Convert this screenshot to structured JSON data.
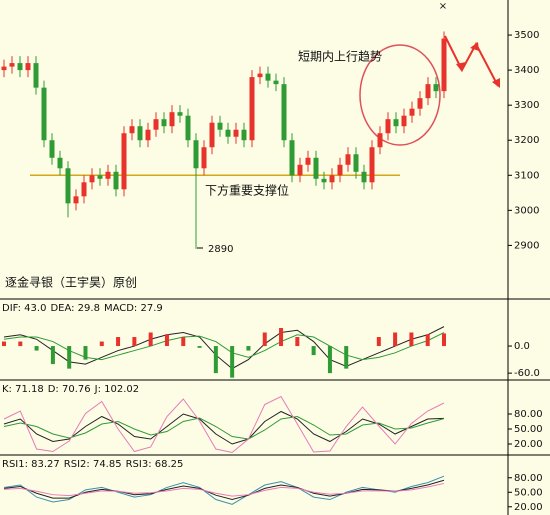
{
  "chart_data": [
    {
      "type": "candlestick",
      "open": [
        3400,
        3410,
        3420,
        3400,
        3420,
        3350,
        3200,
        3150,
        3120,
        3020,
        3040,
        3080,
        3100,
        3090,
        3110,
        3060,
        3220,
        3240,
        3200,
        3230,
        3260,
        3240,
        3280,
        3270,
        3200,
        3120,
        3180,
        3250,
        3230,
        3210,
        3230,
        3200,
        3380,
        3390,
        3370,
        3360,
        3200,
        3100,
        3130,
        3150,
        3090,
        3080,
        3100,
        3130,
        3160,
        3110,
        3080,
        3180,
        3220,
        3260,
        3240,
        3270,
        3290,
        3320,
        3360,
        3340
      ],
      "high": [
        3430,
        3440,
        3440,
        3440,
        3440,
        3370,
        3220,
        3170,
        3140,
        3060,
        3100,
        3120,
        3120,
        3130,
        3130,
        3240,
        3260,
        3260,
        3250,
        3280,
        3280,
        3300,
        3300,
        3290,
        3220,
        3200,
        3270,
        3270,
        3250,
        3250,
        3250,
        3400,
        3410,
        3410,
        3390,
        3380,
        3220,
        3150,
        3170,
        3170,
        3110,
        3120,
        3150,
        3180,
        3180,
        3130,
        3200,
        3240,
        3280,
        3280,
        3290,
        3310,
        3340,
        3380,
        3380,
        3510
      ],
      "low": [
        3380,
        3390,
        3380,
        3380,
        3330,
        3180,
        3130,
        3100,
        2980,
        3000,
        3020,
        3060,
        3070,
        3070,
        3040,
        3040,
        3200,
        3180,
        3180,
        3210,
        3220,
        3220,
        3250,
        3180,
        2890,
        3100,
        3160,
        3210,
        3190,
        3190,
        3180,
        3180,
        3360,
        3350,
        3340,
        3180,
        3080,
        3080,
        3110,
        3070,
        3060,
        3060,
        3080,
        3110,
        3090,
        3060,
        3060,
        3160,
        3200,
        3220,
        3220,
        3250,
        3270,
        3300,
        3320,
        3320
      ],
      "close": [
        3410,
        3420,
        3400,
        3420,
        3350,
        3200,
        3150,
        3120,
        3020,
        3040,
        3080,
        3100,
        3090,
        3110,
        3060,
        3220,
        3240,
        3200,
        3230,
        3260,
        3240,
        3280,
        3270,
        3200,
        3120,
        3180,
        3250,
        3230,
        3210,
        3230,
        3200,
        3380,
        3390,
        3370,
        3360,
        3200,
        3100,
        3130,
        3150,
        3090,
        3080,
        3100,
        3130,
        3160,
        3110,
        3080,
        3180,
        3220,
        3260,
        3240,
        3270,
        3290,
        3320,
        3360,
        3340,
        3490
      ],
      "up_color": "#e8322c",
      "down_color": "#2e9b35",
      "ylim": [
        2750,
        3600
      ],
      "yticks": [
        2900,
        3000,
        3100,
        3200,
        3300,
        3400,
        3500
      ],
      "support_level": 3100,
      "support_color": "#d4a61a",
      "annotations": [
        "短期内上行趋势",
        "下方重要支撑位",
        "2890",
        "逐金寻银（王宇昊）原创"
      ]
    },
    {
      "type": "macd",
      "series": [
        {
          "name": "DIF: 43.0",
          "color": "#222222",
          "values": [
            20,
            25,
            15,
            -10,
            -35,
            -40,
            -25,
            -10,
            0,
            15,
            25,
            30,
            20,
            -20,
            -50,
            -30,
            5,
            30,
            35,
            10,
            -30,
            -45,
            -30,
            -15,
            0,
            15,
            25,
            43
          ]
        },
        {
          "name": "DEA: 29.8",
          "color": "#2e9b35",
          "values": [
            15,
            20,
            20,
            10,
            -10,
            -25,
            -30,
            -20,
            -10,
            0,
            12,
            20,
            22,
            10,
            -15,
            -25,
            -10,
            10,
            25,
            20,
            0,
            -20,
            -30,
            -25,
            -15,
            0,
            12,
            29.8
          ]
        },
        {
          "name": "MACD: 27.9",
          "type": "bar",
          "color": "#e8322c",
          "down_color": "#2e9b35",
          "values": [
            10,
            10,
            -10,
            -40,
            -50,
            -30,
            10,
            20,
            20,
            30,
            26,
            20,
            -4,
            -60,
            -70,
            -10,
            30,
            40,
            20,
            -20,
            -60,
            -50,
            0,
            20,
            30,
            30,
            26,
            27.9
          ]
        }
      ],
      "ylim": [
        -73,
        102
      ],
      "yticks": [
        {
          "value": 0,
          "label": "0.0"
        },
        {
          "value": -60,
          "label": "-60.0"
        }
      ]
    },
    {
      "type": "line",
      "series": [
        {
          "name": "K: 71.18",
          "color": "#222222",
          "values": [
            60,
            70,
            40,
            25,
            30,
            55,
            75,
            60,
            35,
            30,
            55,
            80,
            70,
            40,
            20,
            30,
            65,
            85,
            70,
            40,
            25,
            45,
            70,
            60,
            40,
            55,
            70,
            71.18
          ]
        },
        {
          "name": "D: 70.76",
          "color": "#2e9b35",
          "values": [
            55,
            62,
            55,
            40,
            32,
            42,
            60,
            65,
            50,
            38,
            45,
            65,
            72,
            55,
            35,
            30,
            48,
            70,
            75,
            58,
            38,
            40,
            58,
            62,
            50,
            52,
            62,
            70.76
          ]
        },
        {
          "name": "J: 102.02",
          "color": "#e87ab8",
          "values": [
            70,
            86,
            10,
            5,
            26,
            81,
            105,
            50,
            5,
            14,
            75,
            110,
            66,
            10,
            3,
            30,
            99,
            115,
            60,
            4,
            6,
            55,
            94,
            56,
            20,
            61,
            86,
            102.02
          ]
        }
      ],
      "ylim": [
        0,
        146
      ],
      "yticks": [
        {
          "value": 80,
          "label": "80.00"
        },
        {
          "value": 50,
          "label": "50.00"
        },
        {
          "value": 20,
          "label": "20.00"
        }
      ]
    },
    {
      "type": "line",
      "series": [
        {
          "name": "RSI1: 83.27",
          "color": "#3a8fb0",
          "values": [
            60,
            65,
            40,
            30,
            35,
            55,
            60,
            50,
            40,
            45,
            60,
            70,
            60,
            35,
            25,
            45,
            65,
            72,
            60,
            40,
            35,
            50,
            60,
            55,
            50,
            62,
            70,
            83.27
          ]
        },
        {
          "name": "RSI2: 74.85",
          "color": "#222222",
          "values": [
            58,
            62,
            48,
            38,
            38,
            50,
            56,
            52,
            45,
            47,
            56,
            63,
            58,
            44,
            35,
            44,
            58,
            65,
            60,
            48,
            42,
            48,
            56,
            55,
            52,
            58,
            65,
            74.85
          ]
        },
        {
          "name": "RSI3: 68.25",
          "color": "#e87ab8",
          "values": [
            56,
            58,
            52,
            45,
            43,
            48,
            53,
            52,
            48,
            49,
            53,
            58,
            56,
            48,
            42,
            45,
            54,
            60,
            58,
            50,
            46,
            48,
            53,
            53,
            52,
            55,
            61,
            68.25
          ]
        }
      ],
      "ylim": [
        3,
        125
      ],
      "yticks": [
        {
          "value": 80,
          "label": "80.00"
        },
        {
          "value": 50,
          "label": "50.00"
        },
        {
          "value": 20,
          "label": "20.00"
        }
      ]
    }
  ]
}
